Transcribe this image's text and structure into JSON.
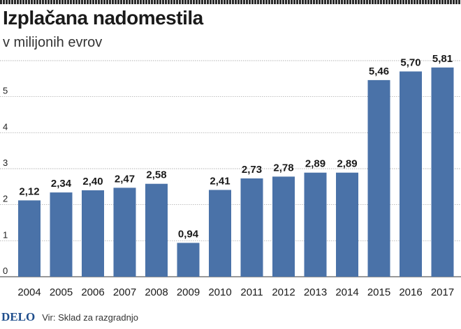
{
  "header": {
    "title": "Izplačana nadomestila",
    "subtitle": "v milijonih evrov"
  },
  "footer": {
    "logo": "DELO",
    "source": "Vir: Sklad za razgradnjo"
  },
  "colors": {
    "bar": "#4a72a8",
    "grid": "#9a9a9a"
  },
  "chart_data": {
    "type": "bar",
    "categories": [
      "2004",
      "2005",
      "2006",
      "2007",
      "2008",
      "2009",
      "2010",
      "2011",
      "2012",
      "2013",
      "2014",
      "2015",
      "2016",
      "2017"
    ],
    "values": [
      2.12,
      2.34,
      2.4,
      2.47,
      2.58,
      0.94,
      2.41,
      2.73,
      2.78,
      2.89,
      2.89,
      5.46,
      5.7,
      5.81
    ],
    "value_labels": [
      "2,12",
      "2,34",
      "2,40",
      "2,47",
      "2,58",
      "0,94",
      "2,41",
      "2,73",
      "2,78",
      "2,89",
      "2,89",
      "5,46",
      "5,70",
      "5,81"
    ],
    "title": "Izplačana nadomestila",
    "subtitle": "v milijonih evrov",
    "xlabel": "",
    "ylabel": "",
    "ylim": [
      0,
      6
    ],
    "yticks": [
      0,
      1,
      2,
      3,
      4,
      5
    ],
    "grid": true,
    "legend": "none"
  }
}
